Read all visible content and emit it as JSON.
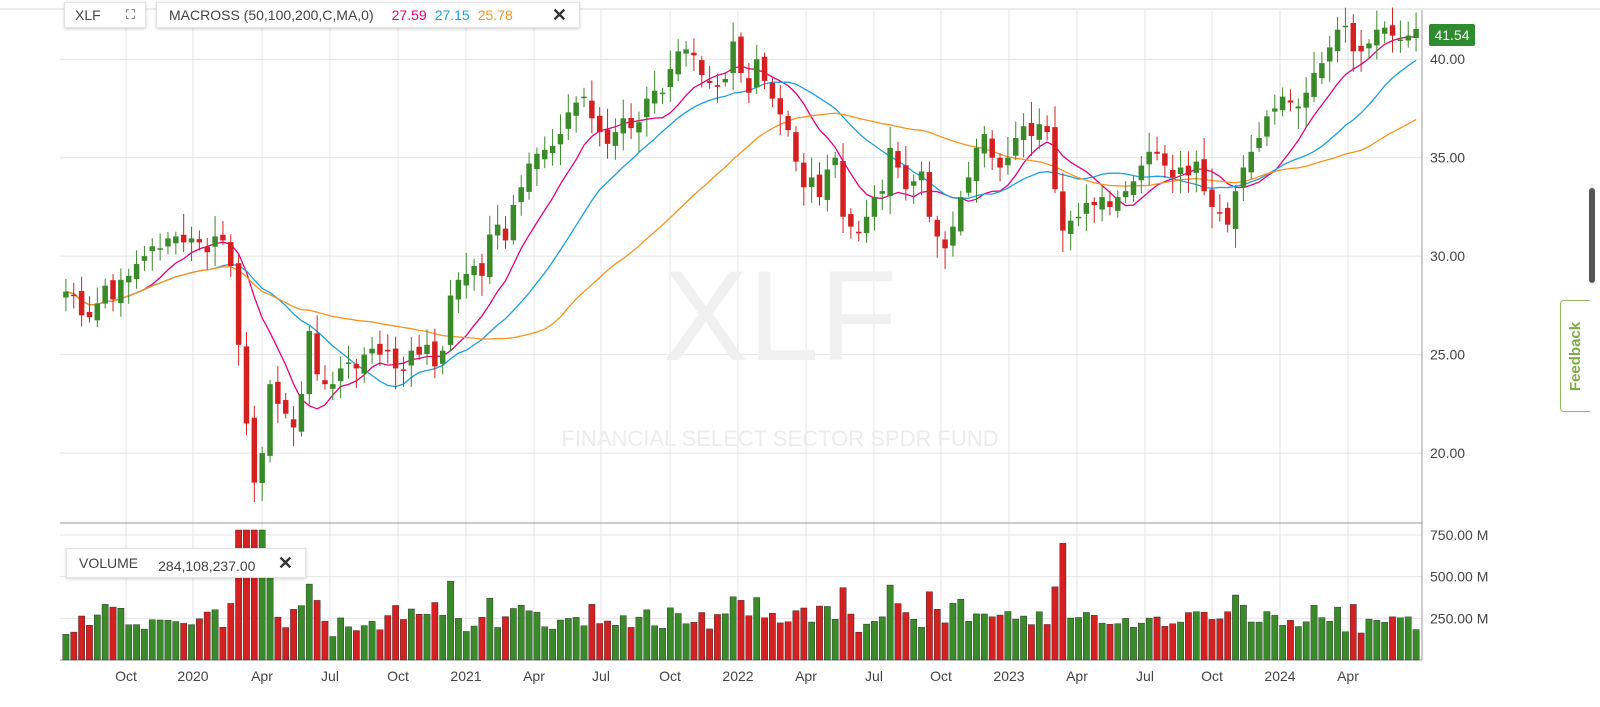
{
  "symbol_box": {
    "symbol": "XLF",
    "expand_icon": "expand-icon"
  },
  "indicator": {
    "label": "MACROSS (50,100,200,C,MA,0)",
    "values": [
      {
        "text": "27.59",
        "color": "#e6007e"
      },
      {
        "text": "27.15",
        "color": "#1ba1e2"
      },
      {
        "text": "25.78",
        "color": "#f7931e"
      }
    ],
    "close_icon": "close-icon"
  },
  "volume_box": {
    "label": "VOLUME",
    "value": "284,108,237.00",
    "close_icon": "close-icon"
  },
  "last_price_tag": {
    "text": "41.54",
    "color": "#2e8b2e"
  },
  "watermark": {
    "symbol": "XLF",
    "name": "FINANCIAL SELECT SECTOR SPDR FUND"
  },
  "feedback_label": "Feedback",
  "colors": {
    "up": "#3a8a2a",
    "down": "#d42020",
    "ma50": "#e6007e",
    "ma100": "#1ba1e2",
    "ma200": "#f7931e",
    "grid": "#e4e4e4"
  },
  "chart_data": {
    "type": "candlestick",
    "x_ticks": [
      "Oct",
      "2020",
      "Apr",
      "Jul",
      "Oct",
      "2021",
      "Apr",
      "Jul",
      "Oct",
      "2022",
      "Apr",
      "Jul",
      "Oct",
      "2023",
      "Apr",
      "Jul",
      "Oct",
      "2024",
      "Apr"
    ],
    "price_axis": {
      "ticks": [
        "20.00",
        "25.00",
        "30.00",
        "35.00",
        "40.00"
      ],
      "range": [
        16.5,
        42.5
      ]
    },
    "volume_axis": {
      "ticks": [
        "250.00 M",
        "500.00 M",
        "750.00 M"
      ],
      "range": [
        0,
        780
      ]
    },
    "price_series_weekly_close": [
      28.2,
      28.0,
      27.0,
      26.9,
      27.6,
      28.5,
      27.8,
      28.8,
      29.0,
      29.6,
      30.0,
      30.5,
      30.4,
      30.9,
      31.0,
      30.7,
      30.9,
      30.7,
      30.2,
      31.0,
      30.8,
      29.5,
      25.5,
      21.5,
      18.5,
      20.0,
      23.5,
      22.5,
      22.0,
      21.3,
      23.0,
      26.2,
      24.0,
      23.5,
      23.5,
      24.3,
      24.6,
      24.3,
      25.0,
      25.3,
      25.0,
      25.2,
      24.3,
      24.2,
      25.2,
      25.0,
      25.5,
      24.4,
      25.2,
      28.0,
      28.8,
      29.1,
      29.5,
      29.0,
      31.1,
      31.6,
      30.8,
      32.6,
      33.5,
      34.7,
      35.2,
      35.4,
      35.6,
      36.2,
      37.3,
      37.8,
      38.1,
      37.0,
      36.3,
      35.7,
      36.3,
      37.0,
      36.5,
      36.8,
      38.0,
      38.4,
      38.3,
      39.5,
      40.4,
      40.5,
      40.2,
      39.2,
      38.8,
      38.6,
      39.0,
      40.9,
      39.3,
      38.3,
      40.0,
      38.9,
      38.0,
      37.2,
      36.4,
      34.8,
      33.5,
      34.0,
      33.0,
      34.4,
      35.0,
      32.0,
      31.5,
      31.2,
      32.0,
      33.0,
      33.3,
      35.5,
      34.5,
      33.4,
      33.8,
      34.3,
      32.0,
      31.0,
      30.4,
      31.5,
      33.0,
      34.0,
      35.5,
      36.2,
      35.0,
      34.5,
      35.0,
      36.0,
      36.6,
      36.1,
      36.7,
      36.3,
      33.4,
      31.3,
      31.8,
      32.0,
      32.7,
      32.6,
      33.0,
      32.5,
      33.0,
      33.3,
      33.8,
      34.6,
      35.3,
      35.2,
      34.6,
      34.0,
      34.5,
      34.1,
      34.8,
      33.3,
      32.5,
      32.2,
      31.6,
      33.3,
      34.5,
      35.3,
      36.0,
      37.1,
      37.5,
      38.1,
      37.8,
      37.6,
      38.3,
      39.3,
      39.8,
      40.6,
      41.5,
      41.7,
      40.4,
      40.4,
      40.8,
      41.5,
      41.6,
      41.2,
      41.0,
      41.2,
      41.54
    ],
    "moving_averages": [
      {
        "name": "MA 50",
        "period": 50,
        "last_value": 27.59
      },
      {
        "name": "MA 100",
        "period": 100,
        "last_value": 27.15
      },
      {
        "name": "MA 200",
        "period": 200,
        "last_value": 25.78
      }
    ],
    "last_price": 41.54,
    "last_volume": 284108237
  }
}
